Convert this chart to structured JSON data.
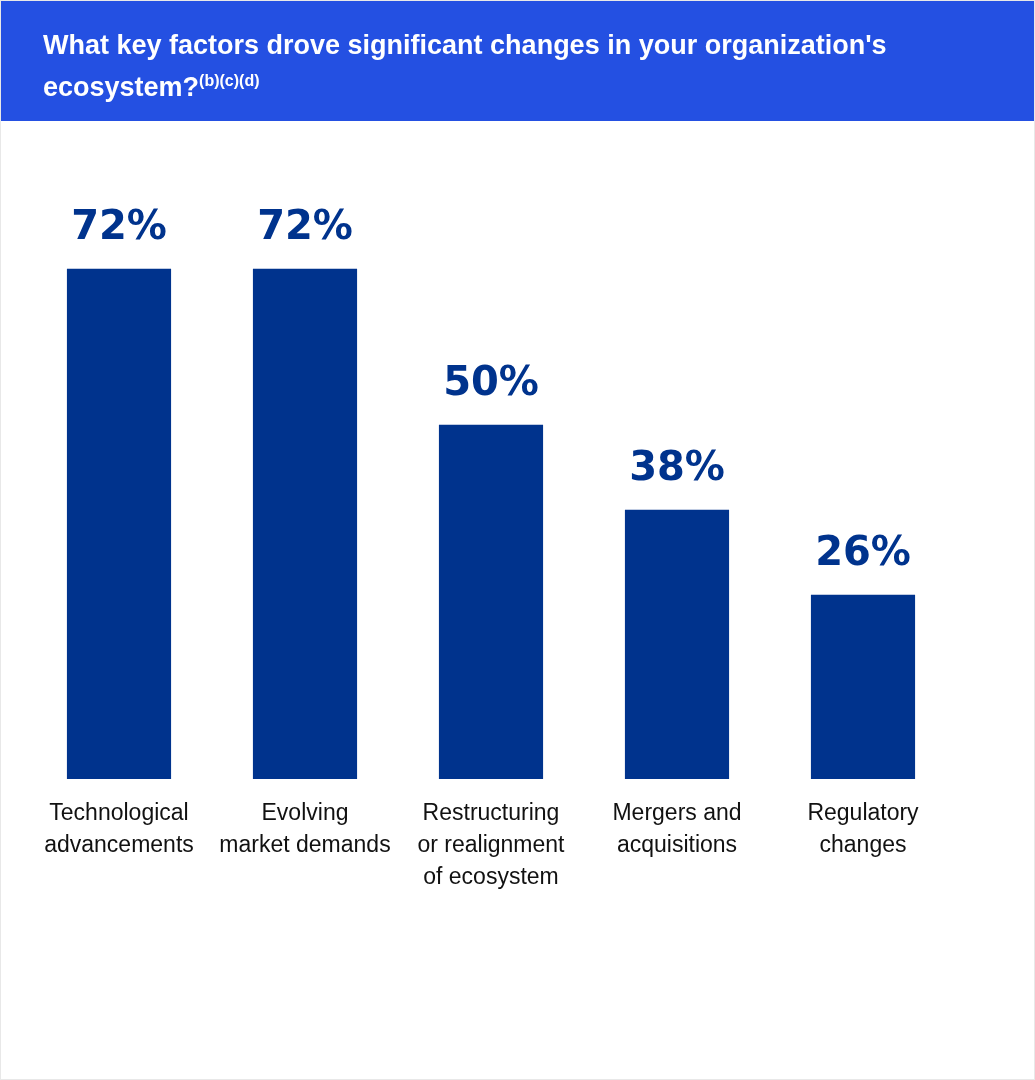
{
  "chart_data": {
    "type": "bar",
    "title": "What key factors drove significant changes in your organization's ecosystem?$^{(b)(c)(d)}$",
    "categories": [
      "Technological advancements",
      "Evolving market demands",
      "Restructuring or realignment of ecosystem",
      "Mergers and acquisitions",
      "Regulatory changes"
    ],
    "values": [
      72,
      72,
      50,
      38,
      26
    ],
    "value_labels": [
      "72%",
      "72%",
      "50%",
      "38%",
      "26%"
    ],
    "color": "#00338d"
  }
}
